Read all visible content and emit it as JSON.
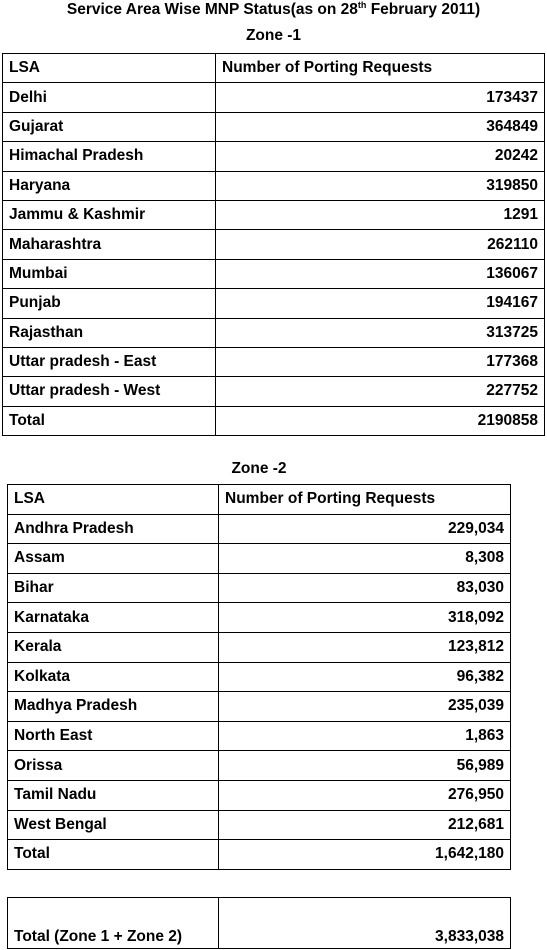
{
  "title": {
    "text": "Service Area Wise MNP Status(as on 28",
    "superscript": "th",
    "text_end": " February 2011)"
  },
  "zone1": {
    "label": "Zone -1",
    "header": [
      "LSA",
      "Number of Porting Requests"
    ],
    "rows": [
      [
        "Delhi",
        "173437"
      ],
      [
        "Gujarat",
        "364849"
      ],
      [
        "Himachal Pradesh",
        "20242"
      ],
      [
        "Haryana",
        "319850"
      ],
      [
        "Jammu & Kashmir",
        "1291"
      ],
      [
        "Maharashtra",
        "262110"
      ],
      [
        "Mumbai",
        "136067"
      ],
      [
        "Punjab",
        "194167"
      ],
      [
        "Rajasthan",
        "313725"
      ],
      [
        "Uttar pradesh - East",
        "177368"
      ],
      [
        "Uttar pradesh - West",
        "227752"
      ]
    ],
    "total": [
      "Total",
      "2190858"
    ]
  },
  "zone2": {
    "label": "Zone -2",
    "header": [
      "LSA",
      "Number of Porting Requests"
    ],
    "rows": [
      [
        "Andhra Pradesh",
        "229,034"
      ],
      [
        "Assam",
        "8,308"
      ],
      [
        "Bihar",
        "83,030"
      ],
      [
        "Karnataka",
        "318,092"
      ],
      [
        "Kerala",
        "123,812"
      ],
      [
        "Kolkata",
        "96,382"
      ],
      [
        "Madhya Pradesh",
        "235,039"
      ],
      [
        "North East",
        "1,863"
      ],
      [
        "Orissa",
        "56,989"
      ],
      [
        "Tamil Nadu",
        "276,950"
      ],
      [
        "West Bengal",
        "212,681"
      ]
    ],
    "total": [
      "Total",
      "1,642,180"
    ]
  },
  "grand_total": [
    "Total (Zone 1 + Zone 2)",
    "3,833,038"
  ]
}
